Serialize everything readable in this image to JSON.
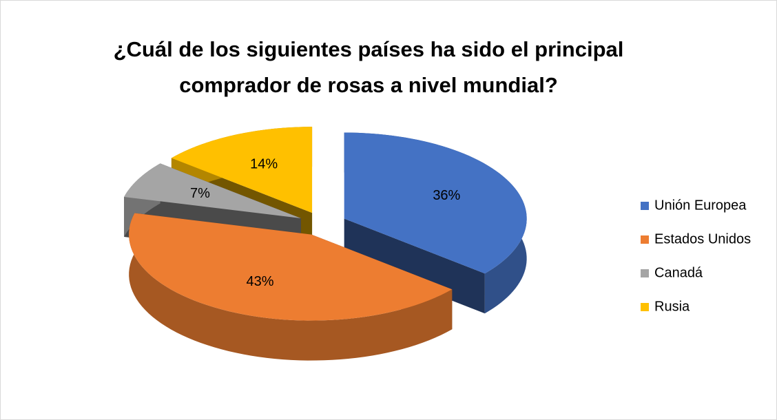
{
  "chart_data": {
    "type": "pie3d",
    "title": [
      "¿Cuál de los siguientes países ha sido el principal",
      "comprador de rosas a nivel mundial?"
    ],
    "categories": [
      "Unión Europea",
      "Estados Unidos",
      "Canadá",
      "Rusia"
    ],
    "values": [
      36,
      43,
      7,
      14
    ],
    "value_labels": [
      "36%",
      "43%",
      "7%",
      "14%"
    ],
    "colors": [
      "#4472c4",
      "#ed7d31",
      "#a5a5a5",
      "#ffc000"
    ],
    "legend": "right"
  }
}
